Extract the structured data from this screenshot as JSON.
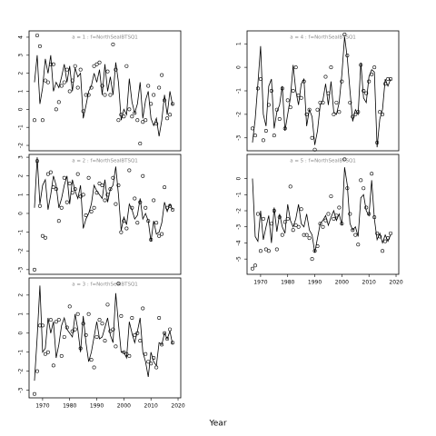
{
  "chart_data": {
    "type": "line",
    "xlabel": "Year",
    "x": [
      1967,
      1968,
      1969,
      1970,
      1971,
      1972,
      1973,
      1974,
      1975,
      1976,
      1977,
      1978,
      1979,
      1980,
      1981,
      1982,
      1983,
      1984,
      1985,
      1986,
      1987,
      1988,
      1989,
      1990,
      1991,
      1992,
      1993,
      1994,
      1995,
      1996,
      1997,
      1998,
      1999,
      2000,
      2001,
      2002,
      2003,
      2004,
      2005,
      2006,
      2007,
      2008,
      2009,
      2010,
      2011,
      2012,
      2013,
      2014,
      2015,
      2016,
      2017,
      2018
    ],
    "xlim": [
      1965,
      2021
    ],
    "xticks": [
      1970,
      1980,
      1990,
      2000,
      2010,
      2020
    ],
    "panels": [
      {
        "title": "a = 1  :  f=NorthSeaIBTSQ1",
        "ylim": [
          -2.3,
          4.35
        ],
        "yticks": [
          -2,
          -1,
          0,
          1,
          2,
          3,
          4
        ],
        "series": [
          {
            "style": "points",
            "color": "#000000",
            "values": [
              -0.6,
              4.1,
              3.5,
              -0.6,
              1.6,
              1.5,
              2.5,
              2.5,
              0,
              0.4,
              1.3,
              1.5,
              2.2,
              1.0,
              1.6,
              2.4,
              1.2,
              2.2,
              -0.1,
              0.8,
              0.8,
              1.2,
              2.4,
              2.5,
              2.6,
              1.3,
              0.8,
              2.1,
              0.8,
              3.6,
              2.2,
              -0.6,
              -0.3,
              -0.4,
              2.4,
              0,
              -0.4,
              -0.2,
              -0.6,
              -1.9,
              -0.7,
              -0.6,
              1.3,
              0.3,
              0.8,
              -0.8,
              1.2,
              1.9,
              0.5,
              -0.5,
              -0.3,
              0.3
            ]
          },
          {
            "style": "line",
            "color": "#000000",
            "values": [
              1.5,
              3.0,
              0.3,
              1.2,
              2.8,
              2.0,
              3.0,
              1.0,
              1.5,
              1.2,
              1.8,
              2.5,
              1.5,
              2.4,
              1.0,
              2.3,
              1.8,
              2.0,
              -0.5,
              0.2,
              1.0,
              1.3,
              2.0,
              1.5,
              2.2,
              0.8,
              2.5,
              1.0,
              1.8,
              0.8,
              2.6,
              1.5,
              -0.6,
              0.0,
              -0.3,
              1.7,
              0.4,
              -0.2,
              0.3,
              1.5,
              -0.5,
              0.5,
              1.0,
              -0.5,
              -0.9,
              -0.5,
              -1.5,
              -0.6,
              0.8,
              -0.3,
              1.0,
              0.2
            ]
          }
        ]
      },
      {
        "title": "a = 2  :  f=NorthSeaIBTSQ1",
        "ylim": [
          -3.25,
          3.15
        ],
        "yticks": [
          -3,
          -2,
          -1,
          0,
          1,
          2,
          3
        ],
        "series": [
          {
            "style": "points",
            "color": "#000000",
            "values": [
              -3.0,
              2.8,
              0.4,
              -1.2,
              -1.3,
              2.1,
              2.2,
              1.4,
              1.3,
              -0.4,
              0.3,
              1.9,
              0.6,
              1.6,
              1.1,
              1.3,
              2.1,
              0.9,
              1.0,
              -0.1,
              1.9,
              0.1,
              0.3,
              1.1,
              1.6,
              1.5,
              0.7,
              1.0,
              1.3,
              1.9,
              0.5,
              1.5,
              -1.0,
              -0.4,
              -0.8,
              2.3,
              0.3,
              0.8,
              -0.5,
              0.6,
              2.0,
              0.3,
              -0.4,
              -1.4,
              0.7,
              -0.5,
              -1.2,
              -1.1,
              1.4,
              0.3,
              0.4,
              0.2
            ]
          },
          {
            "style": "line",
            "color": "#000000",
            "values": [
              0.3,
              3.0,
              0.5,
              1.5,
              1.8,
              0.2,
              1.0,
              2.0,
              1.5,
              0.3,
              0.8,
              1.5,
              2.0,
              0.5,
              1.8,
              1.2,
              0.8,
              1.5,
              -0.8,
              -0.3,
              0.0,
              0.5,
              1.5,
              1.2,
              1.0,
              0.8,
              1.8,
              0.6,
              1.3,
              1.5,
              2.5,
              1.0,
              -0.9,
              -0.2,
              -0.6,
              0.5,
              0.2,
              -0.3,
              -0.1,
              0.8,
              -0.3,
              0.0,
              -0.4,
              -1.5,
              -0.4,
              -1.1,
              -1.0,
              -0.5,
              0.6,
              0.1,
              0.5,
              0.2
            ]
          }
        ]
      },
      {
        "title": "a = 3  :  f=NorthSeaIBTSQ1",
        "ylim": [
          -3.4,
          2.9
        ],
        "yticks": [
          -3,
          -2,
          -1,
          0,
          1,
          2
        ],
        "series": [
          {
            "style": "points",
            "color": "#000000",
            "values": [
              -3.2,
              -2.0,
              0.4,
              0.4,
              -1.1,
              -1.0,
              0.7,
              -1.7,
              0.6,
              0.7,
              -1.2,
              -0.2,
              0.3,
              1.4,
              0.1,
              0.2,
              1.0,
              -0.8,
              0.5,
              -0.1,
              1.0,
              -1.4,
              -1.8,
              -0.2,
              0.7,
              0.5,
              -0.4,
              1.5,
              0.1,
              0.2,
              -0.7,
              2.6,
              0.9,
              -1.0,
              -1.1,
              -1.2,
              0.8,
              -0.1,
              0.0,
              -0.4,
              1.3,
              -1.1,
              -1.5,
              -1.6,
              -1.3,
              -1.8,
              0.8,
              -0.6,
              0.0,
              -0.3,
              0.2,
              -0.5
            ]
          },
          {
            "style": "line",
            "color": "#000000",
            "values": [
              -2.5,
              -0.2,
              2.5,
              -1.0,
              -0.8,
              0.8,
              0.0,
              0.6,
              -1.3,
              -0.6,
              0.4,
              0.8,
              0.2,
              0.0,
              -0.2,
              1.0,
              0.2,
              -1.0,
              0.9,
              -0.5,
              -1.5,
              -1.0,
              -0.2,
              0.6,
              -0.3,
              -0.2,
              0.3,
              0.8,
              -0.1,
              -0.5,
              2.1,
              0.5,
              -1.0,
              -1.0,
              -1.3,
              0.6,
              0.0,
              -0.5,
              0.1,
              0.8,
              -1.0,
              -1.5,
              -2.3,
              -1.0,
              -1.5,
              -1.7,
              -0.5,
              -0.6,
              0.0,
              -0.3,
              0.1,
              -0.6
            ]
          }
        ]
      },
      {
        "title": "a = 4  :  f=NorthSeaIBTSQ1",
        "ylim": [
          -3.55,
          1.55
        ],
        "yticks": [
          -3,
          -2,
          -1,
          0,
          1
        ],
        "series": [
          {
            "style": "points",
            "color": "#000000",
            "values": [
              -2.6,
              -2.9,
              -0.9,
              -0.5,
              -3.1,
              -2.7,
              -1.6,
              -1.0,
              -2.9,
              -1.8,
              -2.2,
              -0.9,
              -2.6,
              -1.4,
              -1.7,
              -1.0,
              0.0,
              -1.2,
              -1.3,
              -0.6,
              -2.0,
              -1.8,
              -3.0,
              -3.5,
              -1.8,
              -1.5,
              -1.5,
              -0.4,
              -1.1,
              0.0,
              -2.0,
              -1.5,
              -1.9,
              -0.6,
              1.4,
              0.5,
              -1.5,
              -2.1,
              -2.0,
              -1.9,
              0.1,
              -1.0,
              -1.1,
              -0.6,
              -0.3,
              0.0,
              -3.2,
              -1.9,
              -2.0,
              -0.7,
              -0.5,
              -0.5
            ]
          },
          {
            "style": "line",
            "color": "#000000",
            "values": [
              -3.2,
              -2.2,
              -0.7,
              0.9,
              -2.0,
              -2.5,
              -0.8,
              -0.5,
              -2.6,
              -1.9,
              -1.6,
              -0.8,
              -2.7,
              -2.0,
              -1.3,
              0.1,
              -1.0,
              -1.6,
              -0.7,
              -0.5,
              -2.5,
              -1.8,
              -2.1,
              -3.3,
              -2.7,
              -1.6,
              -1.4,
              -0.7,
              -1.6,
              -0.6,
              -1.9,
              -2.0,
              -1.5,
              -0.3,
              1.3,
              0.4,
              -1.0,
              -2.3,
              -1.8,
              -2.0,
              0.2,
              -1.3,
              -1.5,
              -0.4,
              -0.1,
              -0.2,
              -3.4,
              -2.2,
              -1.8,
              -0.5,
              -0.8,
              -0.5
            ]
          }
        ]
      },
      {
        "title": "a = 5  :  f=NorthSeaIBTSQ1",
        "ylim": [
          -5.95,
          1.5
        ],
        "yticks": [
          -5,
          -4,
          -3,
          -2,
          -1,
          0
        ],
        "series": [
          {
            "style": "points",
            "color": "#000000",
            "values": [
              -5.6,
              -5.4,
              -2.2,
              -4.5,
              -2.5,
              -4.4,
              -4.5,
              -2.8,
              -2.0,
              -4.4,
              -2.4,
              -3.5,
              -2.7,
              -2.5,
              -0.5,
              -3.2,
              -2.9,
              -3.0,
              -1.9,
              -3.5,
              -3.5,
              -3.7,
              -5.0,
              -4.5,
              -4.2,
              -2.8,
              -3.0,
              -2.6,
              -2.2,
              -1.1,
              -2.5,
              -2.3,
              -1.8,
              -2.8,
              1.2,
              -0.6,
              -2.2,
              -3.2,
              -3.5,
              -4.1,
              -0.1,
              -0.6,
              -1.8,
              -2.2,
              0.3,
              -2.4,
              -3.4,
              -3.6,
              -4.5,
              -3.9,
              -3.7,
              -3.4
            ]
          },
          {
            "style": "line",
            "color": "#000000",
            "values": [
              0.0,
              -3.6,
              -3.9,
              -2.0,
              -3.8,
              -3.0,
              -2.3,
              -4.0,
              -1.8,
              -3.3,
              -2.2,
              -3.0,
              -3.4,
              -1.6,
              -2.6,
              -3.0,
              -2.5,
              -1.6,
              -2.8,
              -3.0,
              -2.2,
              -3.2,
              -3.5,
              -4.6,
              -3.7,
              -2.8,
              -2.6,
              -2.3,
              -2.9,
              -2.4,
              -2.0,
              -2.6,
              -2.2,
              -2.9,
              0.7,
              -0.4,
              -2.8,
              -3.2,
              -3.0,
              -3.6,
              -1.2,
              -1.0,
              -2.0,
              -2.3,
              -0.1,
              -2.5,
              -3.8,
              -3.4,
              -4.0,
              -3.5,
              -3.9,
              -3.5
            ]
          }
        ]
      }
    ]
  }
}
